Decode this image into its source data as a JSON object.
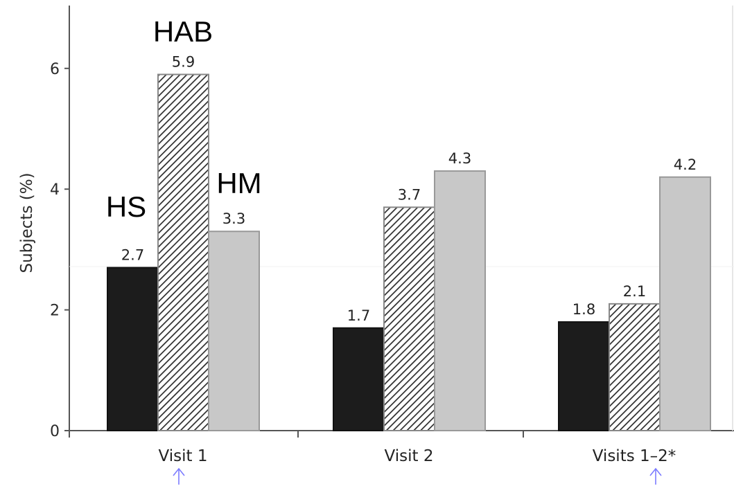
{
  "chart_data": {
    "type": "bar",
    "ylabel": "Subjects (%)",
    "ylim": [
      0,
      6.5
    ],
    "yticks": [
      0,
      2,
      4,
      6
    ],
    "categories": [
      "Visit 1",
      "Visit 2",
      "Visits 1–2*"
    ],
    "series": [
      {
        "name": "HS",
        "values": [
          2.7,
          1.7,
          1.8
        ],
        "fill": "#1c1c1c",
        "stroke": "#111111"
      },
      {
        "name": "HAB",
        "values": [
          5.9,
          3.7,
          2.1
        ],
        "fill": "hatch",
        "stroke": "#888888"
      },
      {
        "name": "HM",
        "values": [
          3.3,
          4.3,
          4.2
        ],
        "fill": "#c8c8c8",
        "stroke": "#999999"
      }
    ],
    "data_labels": [
      [
        "2.7",
        "1.7",
        "1.8"
      ],
      [
        "5.9",
        "3.7",
        "2.1"
      ],
      [
        "3.3",
        "4.3",
        "4.2"
      ]
    ],
    "grid": false,
    "legend": "inline labels on first group",
    "annotations": [
      {
        "type": "arrow",
        "glyph": "↑",
        "category": "Visit 1",
        "color": "#7b7bff"
      },
      {
        "type": "arrow",
        "glyph": "↑",
        "category": "Visits 1–2*",
        "color": "#7b7bff"
      }
    ]
  }
}
